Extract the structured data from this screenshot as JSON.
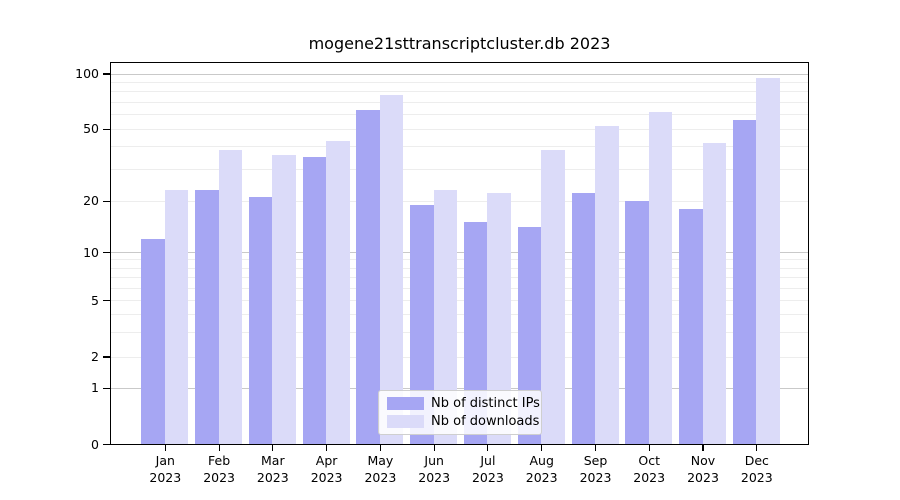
{
  "chart_data": {
    "type": "bar",
    "title": "mogene21sttranscriptcluster.db 2023",
    "year_label": "2023",
    "categories": [
      "Jan",
      "Feb",
      "Mar",
      "Apr",
      "May",
      "Jun",
      "Jul",
      "Aug",
      "Sep",
      "Oct",
      "Nov",
      "Dec"
    ],
    "series": [
      {
        "name": "Nb of distinct IPs",
        "color": "#a6a6f3",
        "values": [
          12,
          23,
          21,
          35,
          63,
          19,
          15,
          14,
          22,
          20,
          18,
          56
        ]
      },
      {
        "name": "Nb of downloads",
        "color": "#dbdbf9",
        "values": [
          23,
          38,
          36,
          43,
          76,
          23,
          22,
          38,
          52,
          62,
          42,
          95
        ]
      }
    ],
    "xlabel": "",
    "ylabel": "",
    "y_axis": {
      "scale": "pseudo-log",
      "ticks": [
        0,
        1,
        2,
        5,
        10,
        20,
        50,
        100
      ],
      "major_gridlines": [
        1,
        10,
        100
      ],
      "minor_gridlines": [
        2,
        3,
        4,
        5,
        6,
        7,
        8,
        9,
        20,
        30,
        40,
        50,
        60,
        70,
        80,
        90
      ],
      "ylim": [
        0,
        115
      ],
      "grid": "on"
    },
    "legend": {
      "position": "lower center inside plot",
      "entries": [
        "Nb of distinct IPs",
        "Nb of downloads"
      ]
    }
  }
}
